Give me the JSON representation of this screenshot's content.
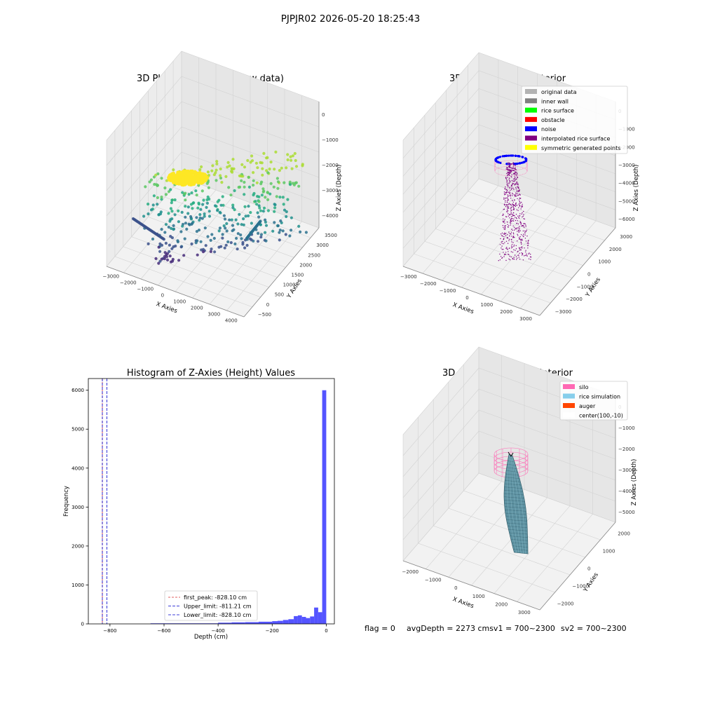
{
  "figure": {
    "suptitle": "PJPJR02 2026-05-20 18:25:43",
    "status": {
      "flag": "flag = 0",
      "avg": "avgDepth = 2273 cmsv1 = 700~2300",
      "sv2": "sv2 = 700~2300"
    }
  },
  "chart_data": [
    {
      "type": "scatter",
      "title": "3D Plot of Silo Interior(row data)",
      "xlabel": "X Axies",
      "ylabel": "Y Axies",
      "zlabel": "Z Axies (Depth)",
      "xticks": [
        "−3000",
        "−2000",
        "−1000",
        "0",
        "1000",
        "2000",
        "3000",
        "4000"
      ],
      "yticks": [
        "−500",
        "0",
        "500",
        "1000",
        "1500",
        "2000",
        "2500",
        "3000",
        "3500"
      ],
      "zticks": [
        "0",
        "−1000",
        "−2000",
        "−3000",
        "−4000"
      ],
      "xlim": [
        -3400,
        4400
      ],
      "ylim": [
        -600,
        3600
      ],
      "zlim": [
        -4600,
        200
      ],
      "colormap": "viridis",
      "clusters": [
        {
          "name": "surface cluster",
          "x": [
            -500,
            300
          ],
          "y": [
            1200,
            2400
          ],
          "z": [
            -1700,
            -1300
          ],
          "color": "#fde725"
        },
        {
          "name": "wall points",
          "x": [
            -3000,
            3800
          ],
          "y": [
            -400,
            3300
          ],
          "z": [
            -4400,
            -1500
          ],
          "color": "#21918c"
        }
      ]
    },
    {
      "type": "scatter",
      "title": "3D classify of Silo Interior",
      "xlabel": "X Axies",
      "ylabel": "Y Axies",
      "zlabel": "Z Axies (Depth)",
      "xticks": [
        "−3000",
        "−2000",
        "−1000",
        "0",
        "1000",
        "2000",
        "3000"
      ],
      "yticks": [
        "−3000",
        "−2000",
        "−1000",
        "0",
        "1000",
        "2000",
        "3000"
      ],
      "zticks": [
        "0",
        "−1000",
        "−2000",
        "−3000",
        "−4000",
        "−5000",
        "−6000"
      ],
      "xlim": [
        -3300,
        3300
      ],
      "ylim": [
        -3300,
        3300
      ],
      "zlim": [
        -6300,
        300
      ],
      "legend": "upper-right",
      "series": [
        {
          "name": "original data",
          "color": "#b3b3b3"
        },
        {
          "name": "inner wall",
          "color": "#808080"
        },
        {
          "name": "rice surface",
          "color": "#00ff00"
        },
        {
          "name": "obstacle",
          "color": "#ff0000"
        },
        {
          "name": "noise",
          "color": "#0000ff"
        },
        {
          "name": "interpolated rice surface",
          "color": "#800080"
        },
        {
          "name": "symmetric generated points",
          "color": "#ffff00"
        }
      ]
    },
    {
      "type": "bar",
      "title": "Histogram of Z-Axies (Height) Values",
      "xlabel": "Depth (cm)",
      "ylabel": "Frequency",
      "xlim": [
        -880,
        30
      ],
      "ylim": [
        0,
        6300
      ],
      "xticks": [
        -800,
        -600,
        -400,
        -200,
        0
      ],
      "yticks": [
        0,
        1000,
        2000,
        3000,
        4000,
        5000,
        6000
      ],
      "bar_color": "#4b4bff",
      "bins": [
        {
          "x0": -650,
          "x1": -400,
          "count": 15
        },
        {
          "x0": -400,
          "x1": -350,
          "count": 30
        },
        {
          "x0": -350,
          "x1": -300,
          "count": 40
        },
        {
          "x0": -300,
          "x1": -250,
          "count": 45
        },
        {
          "x0": -250,
          "x1": -200,
          "count": 55
        },
        {
          "x0": -200,
          "x1": -180,
          "count": 70
        },
        {
          "x0": -180,
          "x1": -160,
          "count": 80
        },
        {
          "x0": -160,
          "x1": -140,
          "count": 100
        },
        {
          "x0": -140,
          "x1": -120,
          "count": 120
        },
        {
          "x0": -120,
          "x1": -105,
          "count": 200
        },
        {
          "x0": -105,
          "x1": -90,
          "count": 220
        },
        {
          "x0": -90,
          "x1": -75,
          "count": 180
        },
        {
          "x0": -75,
          "x1": -60,
          "count": 150
        },
        {
          "x0": -60,
          "x1": -45,
          "count": 190
        },
        {
          "x0": -45,
          "x1": -30,
          "count": 420
        },
        {
          "x0": -30,
          "x1": -15,
          "count": 300
        },
        {
          "x0": -15,
          "x1": 0,
          "count": 6000
        }
      ],
      "vlines": [
        {
          "label": "first_peak: -828.10 cm",
          "x": -828.1,
          "color": "#d62728",
          "dash": "3,2"
        },
        {
          "label": "Upper_limit: -811.21 cm",
          "x": -811.21,
          "color": "#0000cc",
          "dash": "4,2"
        },
        {
          "label": "Lower_limit: -828.10 cm",
          "x": -828.1,
          "color": "#0000cc",
          "dash": "4,2"
        }
      ],
      "legend": "lower-center"
    },
    {
      "type": "area",
      "title": "3D simulation of Silo Interior",
      "xlabel": "X Axies",
      "ylabel": "Y Axies",
      "zlabel": "Z Axies (Depth)",
      "xticks": [
        "−2000",
        "−1000",
        "0",
        "1000",
        "2000",
        "3000"
      ],
      "yticks": [
        "−2000",
        "−1000",
        "0",
        "1000",
        "2000"
      ],
      "zticks": [
        "0",
        "−1000",
        "−2000",
        "−3000",
        "−4000",
        "−5000"
      ],
      "xlim": [
        -2600,
        3000
      ],
      "ylim": [
        -2600,
        2600
      ],
      "zlim": [
        -5500,
        300
      ],
      "legend": "upper-right",
      "series": [
        {
          "name": "silo",
          "color": "#ff69b4"
        },
        {
          "name": "rice simulation",
          "color": "#87ceeb"
        },
        {
          "name": "auger",
          "color": "#ff4500"
        },
        {
          "name": "center(100,-10)",
          "color": "#ffffff"
        }
      ]
    }
  ]
}
